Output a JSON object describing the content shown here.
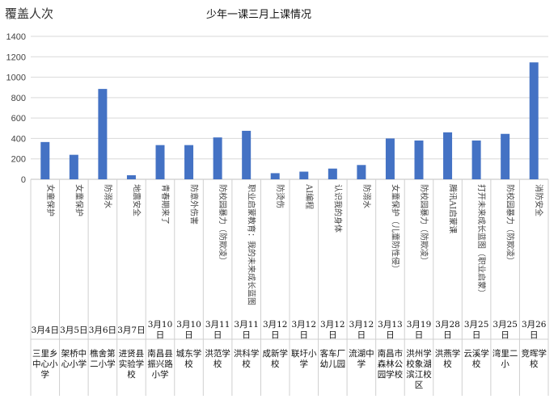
{
  "chart_data": {
    "type": "bar",
    "title": "少年一课三月上课情况",
    "ylabel": "覆盖人次",
    "ylim": [
      0,
      1400
    ],
    "yticks": [
      0,
      200,
      400,
      600,
      800,
      1000,
      1200,
      1400
    ],
    "grid": true,
    "bar_color": "#4472C4",
    "categories": [
      "女童保护",
      "女童保护",
      "防溺水",
      "地震安全",
      "青春期来了",
      "防意外伤害",
      "防校园暴力（防欺凌）",
      "职业启蒙教育：我的未来成长蓝图",
      "防烫伤",
      "AI编程",
      "认识我的身体",
      "防溺水",
      "女童保护（儿童防性侵）",
      "防校园暴力（防欺凌）",
      "腾讯AI启蒙课",
      "打开未来成长蓝图（职业启蒙）",
      "防校园暴力（防欺凌）",
      "消防安全"
    ],
    "dates": [
      "3月4日",
      "3月5日",
      "3月6日",
      "3月7日",
      "3月10日",
      "3月10日",
      "3月11日",
      "3月11日",
      "3月12日",
      "3月12日",
      "3月12日",
      "3月12日",
      "3月13日",
      "3月19日",
      "3月28日",
      "3月25日",
      "3月25日",
      "3月26日"
    ],
    "schools": [
      "三里乡中心小学",
      "架桥中心小学",
      "樵舍第二小学",
      "进贤县实验学校",
      "南昌县振兴路小学",
      "城东学校",
      "洪范学校",
      "洪科学校",
      "成新学校",
      "联圩小学",
      "客车厂幼儿园",
      "流湖中学",
      "南昌市森林公园学校",
      "洪州学校象湖滨江校区",
      "洪燕学校",
      "云溪学校",
      "湾里二小",
      "竞晖学校"
    ],
    "values": [
      365,
      240,
      885,
      40,
      335,
      335,
      410,
      475,
      60,
      75,
      105,
      140,
      400,
      380,
      460,
      380,
      445,
      1145
    ]
  }
}
